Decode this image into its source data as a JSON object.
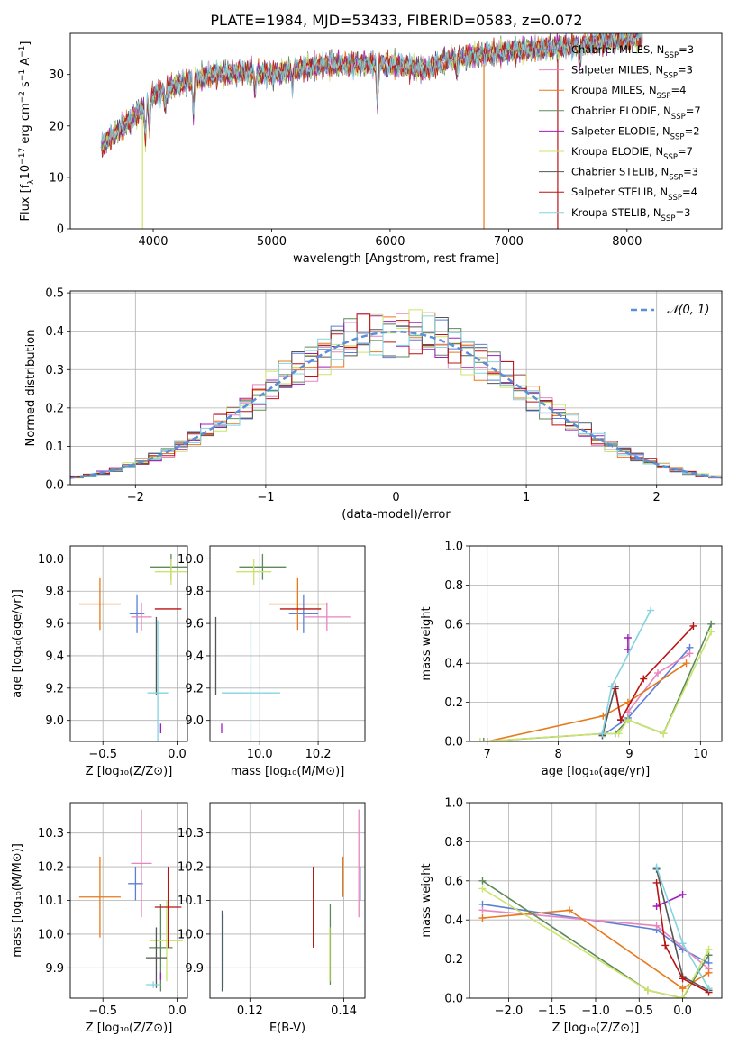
{
  "figure": {
    "title": "PLATE=1984, MJD=53433, FIBERID=0583, z=0.072"
  },
  "chart_data": [
    {
      "id": "spectrum",
      "type": "line",
      "xlabel": "wavelength [Angstrom, rest frame]",
      "ylabel_parts": [
        "Flux [f",
        "λ",
        "10",
        "−17",
        " erg cm",
        "−2",
        " s",
        "−1",
        " A",
        "−1",
        "]"
      ],
      "xlim": [
        3300,
        8800
      ],
      "ylim": [
        0,
        38
      ],
      "xticks": [
        4000,
        5000,
        6000,
        7000,
        8000
      ],
      "yticks": [
        0,
        10,
        20,
        30
      ],
      "grid": false,
      "legend_position": "upper-right",
      "continuum": [
        [
          3560,
          16
        ],
        [
          3700,
          19
        ],
        [
          3850,
          22
        ],
        [
          4000,
          26
        ],
        [
          4200,
          28
        ],
        [
          4500,
          30
        ],
        [
          4800,
          30.5
        ],
        [
          5000,
          30
        ],
        [
          5200,
          31
        ],
        [
          5500,
          32
        ],
        [
          6000,
          32
        ],
        [
          6300,
          31
        ],
        [
          6500,
          33
        ],
        [
          6800,
          34
        ],
        [
          7000,
          34.5
        ],
        [
          7500,
          35.5
        ],
        [
          8000,
          37
        ],
        [
          8130,
          37
        ]
      ],
      "series": [
        {
          "name_parts": [
            "Chabrier MILES, N",
            "SSP",
            "=3"
          ],
          "color": "#5b7fd6"
        },
        {
          "name_parts": [
            "Salpeter MILES, N",
            "SSP",
            "=3"
          ],
          "color": "#e884be"
        },
        {
          "name_parts": [
            "Kroupa MILES, N",
            "SSP",
            "=4"
          ],
          "color": "#e8791a"
        },
        {
          "name_parts": [
            "Chabrier ELODIE, N",
            "SSP",
            "=7"
          ],
          "color": "#5d8a5a"
        },
        {
          "name_parts": [
            "Salpeter ELODIE, N",
            "SSP",
            "=2"
          ],
          "color": "#a21cc2"
        },
        {
          "name_parts": [
            "Kroupa ELODIE, N",
            "SSP",
            "=7"
          ],
          "color": "#cbe46a"
        },
        {
          "name_parts": [
            "Chabrier STELIB, N",
            "SSP",
            "=3"
          ],
          "color": "#555555"
        },
        {
          "name_parts": [
            "Salpeter STELIB, N",
            "SSP",
            "=4"
          ],
          "color": "#b81414"
        },
        {
          "name_parts": [
            "Kroupa STELIB, N",
            "SSP",
            "=3"
          ],
          "color": "#83d4e0"
        }
      ]
    },
    {
      "id": "residuals",
      "type": "histogram",
      "xlabel": "(data-model)/error",
      "ylabel": "Normed distribution",
      "xlim": [
        -2.5,
        2.5
      ],
      "ylim": [
        0,
        0.505
      ],
      "xticks": [
        -2,
        -1,
        0,
        1,
        2
      ],
      "yticks": [
        0.0,
        0.1,
        0.2,
        0.3,
        0.4,
        0.5
      ],
      "grid": true,
      "legend": {
        "label": "𝒩(0, 1)",
        "position": "upper-right"
      },
      "bins": {
        "start": -2.5,
        "width": 0.1,
        "count": 50
      },
      "series": [
        {
          "color": "#5b7fd6",
          "phase": 0.0
        },
        {
          "color": "#e884be",
          "phase": 1.3
        },
        {
          "color": "#e8791a",
          "phase": 2.1
        },
        {
          "color": "#5d8a5a",
          "phase": 3.4
        },
        {
          "color": "#a21cc2",
          "phase": 4.2
        },
        {
          "color": "#cbe46a",
          "phase": 5.0
        },
        {
          "color": "#555555",
          "phase": 5.9
        },
        {
          "color": "#b81414",
          "phase": 0.7
        },
        {
          "color": "#83d4e0",
          "phase": 2.8
        }
      ]
    },
    {
      "id": "z-age",
      "type": "errorbar",
      "xlabel": "Z [log₁₀(Z/Z⊙)]",
      "ylabel": "age  [log₁₀(age/yr)]",
      "xlim": [
        -0.72,
        0.07
      ],
      "ylim": [
        8.87,
        10.08
      ],
      "xticks": [
        -0.5,
        0.0
      ],
      "yticks": [
        9.0,
        9.2,
        9.4,
        9.6,
        9.8,
        10.0
      ],
      "grid": true,
      "points": [
        {
          "color": "#5b7fd6",
          "x": -0.27,
          "xerr": 0.05,
          "y": 9.66,
          "yerr": 0.12
        },
        {
          "color": "#e884be",
          "x": -0.24,
          "xerr": 0.07,
          "y": 9.64,
          "yerr": 0.09
        },
        {
          "color": "#e8791a",
          "x": -0.52,
          "xerr": 0.14,
          "y": 9.72,
          "yerr": 0.16
        },
        {
          "color": "#5d8a5a",
          "x": -0.04,
          "xerr": 0.14,
          "y": 9.95,
          "yerr": 0.08
        },
        {
          "color": "#a21cc2",
          "x": -0.11,
          "xerr": 0.0,
          "y": 8.95,
          "yerr": 0.03
        },
        {
          "color": "#cbe46a",
          "x": -0.04,
          "xerr": 0.11,
          "y": 9.92,
          "yerr": 0.08
        },
        {
          "color": "#555555",
          "x": -0.14,
          "xerr": 0.0,
          "y": 9.4,
          "yerr": 0.24
        },
        {
          "color": "#b81414",
          "x": -0.06,
          "xerr": 0.09,
          "y": 9.69,
          "yerr": 0.0
        },
        {
          "color": "#83d4e0",
          "x": -0.13,
          "xerr": 0.07,
          "y": 9.17,
          "yerr": 0.45
        }
      ]
    },
    {
      "id": "mass-age",
      "type": "errorbar",
      "xlabel": "mass [log₁₀(M/M⊙)]",
      "ylabel": "",
      "xlim": [
        9.83,
        10.36
      ],
      "ylim": [
        8.87,
        10.08
      ],
      "xticks": [
        10.0,
        10.2
      ],
      "yticks": [
        9.0,
        9.2,
        9.4,
        9.6,
        9.8,
        10.0
      ],
      "grid": true,
      "points": [
        {
          "color": "#5b7fd6",
          "x": 10.15,
          "xerr": 0.05,
          "y": 9.66,
          "yerr": 0.12
        },
        {
          "color": "#e884be",
          "x": 10.23,
          "xerr": 0.08,
          "y": 9.64,
          "yerr": 0.09
        },
        {
          "color": "#e8791a",
          "x": 10.13,
          "xerr": 0.1,
          "y": 9.72,
          "yerr": 0.16
        },
        {
          "color": "#5d8a5a",
          "x": 10.01,
          "xerr": 0.08,
          "y": 9.95,
          "yerr": 0.08
        },
        {
          "color": "#a21cc2",
          "x": 9.87,
          "xerr": 0.0,
          "y": 8.95,
          "yerr": 0.03
        },
        {
          "color": "#cbe46a",
          "x": 9.98,
          "xerr": 0.06,
          "y": 9.92,
          "yerr": 0.08
        },
        {
          "color": "#555555",
          "x": 9.85,
          "xerr": 0.0,
          "y": 9.4,
          "yerr": 0.24
        },
        {
          "color": "#b81414",
          "x": 10.14,
          "xerr": 0.07,
          "y": 9.69,
          "yerr": 0.0
        },
        {
          "color": "#83d4e0",
          "x": 9.97,
          "xerr": 0.1,
          "y": 9.17,
          "yerr": 0.45
        }
      ]
    },
    {
      "id": "age-weight",
      "type": "line",
      "xlabel": "age  [log₁₀(age/yr)]",
      "ylabel": "mass weight",
      "xlim": [
        6.75,
        10.3
      ],
      "ylim": [
        0.0,
        1.0
      ],
      "xticks": [
        7,
        8,
        9,
        10
      ],
      "yticks": [
        0.0,
        0.2,
        0.4,
        0.6,
        0.8,
        1.0
      ],
      "grid": true,
      "series": [
        {
          "color": "#5b7fd6",
          "x": [
            8.62,
            8.98,
            9.85
          ],
          "y": [
            0.03,
            0.12,
            0.48
          ]
        },
        {
          "color": "#e884be",
          "x": [
            8.98,
            9.4,
            9.85
          ],
          "y": [
            0.15,
            0.35,
            0.45
          ]
        },
        {
          "color": "#e8791a",
          "x": [
            7.0,
            8.63,
            8.98,
            9.8
          ],
          "y": [
            0.0,
            0.13,
            0.2,
            0.4
          ]
        },
        {
          "color": "#5d8a5a",
          "x": [
            6.95,
            8.65,
            8.8,
            8.98,
            9.48,
            10.15
          ],
          "y": [
            0.0,
            0.04,
            0.04,
            0.11,
            0.04,
            0.6
          ]
        },
        {
          "color": "#a21cc2",
          "x": [
            8.98,
            8.98
          ],
          "y": [
            0.47,
            0.53
          ]
        },
        {
          "color": "#cbe46a",
          "x": [
            6.9,
            8.65,
            8.85,
            8.98,
            9.48,
            10.15
          ],
          "y": [
            0.0,
            0.04,
            0.04,
            0.11,
            0.04,
            0.56
          ]
        },
        {
          "color": "#555555",
          "x": [
            8.62,
            8.8,
            8.88
          ],
          "y": [
            0.03,
            0.28,
            0.11
          ]
        },
        {
          "color": "#b81414",
          "x": [
            8.8,
            8.88,
            9.2,
            9.9
          ],
          "y": [
            0.27,
            0.11,
            0.32,
            0.59
          ]
        },
        {
          "color": "#83d4e0",
          "x": [
            8.62,
            8.75,
            9.3
          ],
          "y": [
            0.04,
            0.28,
            0.67
          ]
        }
      ]
    },
    {
      "id": "z-mass",
      "type": "errorbar",
      "xlabel": "Z [log₁₀(Z/Z⊙)]",
      "ylabel": "mass [log₁₀(M/M⊙)]",
      "xlim": [
        -0.72,
        0.07
      ],
      "ylim": [
        9.81,
        10.39
      ],
      "xticks": [
        -0.5,
        0.0
      ],
      "yticks": [
        9.9,
        10.0,
        10.1,
        10.2,
        10.3
      ],
      "grid": true,
      "points": [
        {
          "color": "#5b7fd6",
          "x": -0.28,
          "xerr": 0.05,
          "y": 10.15,
          "yerr": 0.05
        },
        {
          "color": "#e884be",
          "x": -0.24,
          "xerr": 0.07,
          "y": 10.21,
          "yerr": 0.16
        },
        {
          "color": "#e8791a",
          "x": -0.52,
          "xerr": 0.14,
          "y": 10.11,
          "yerr": 0.12
        },
        {
          "color": "#5d8a5a",
          "x": -0.11,
          "xerr": 0.08,
          "y": 9.96,
          "yerr": 0.13
        },
        {
          "color": "#a21cc2",
          "x": -0.11,
          "xerr": 0.0,
          "y": 9.875,
          "yerr": 0.0
        },
        {
          "color": "#cbe46a",
          "x": -0.07,
          "xerr": 0.11,
          "y": 9.98,
          "yerr": 0.12
        },
        {
          "color": "#555555",
          "x": -0.14,
          "xerr": 0.07,
          "y": 9.93,
          "yerr": 0.09
        },
        {
          "color": "#b81414",
          "x": -0.06,
          "xerr": 0.09,
          "y": 10.08,
          "yerr": 0.12
        },
        {
          "color": "#83d4e0",
          "x": -0.16,
          "xerr": 0.05,
          "y": 9.85,
          "yerr": 0.01
        }
      ]
    },
    {
      "id": "ebv-mass",
      "type": "errorbar",
      "xlabel": "E(B-V)",
      "ylabel": "",
      "xlim": [
        0.1115,
        0.1445
      ],
      "ylim": [
        9.81,
        10.39
      ],
      "xticks": [
        0.12,
        0.14
      ],
      "yticks": [
        9.9,
        10.0,
        10.1,
        10.2,
        10.3
      ],
      "grid": true,
      "points": [
        {
          "color": "#5b7fd6",
          "x": 0.1435,
          "xerr": 0,
          "y": 10.15,
          "yerr": 0.05
        },
        {
          "color": "#e884be",
          "x": 0.1432,
          "xerr": 0,
          "y": 10.21,
          "yerr": 0.16
        },
        {
          "color": "#e8791a",
          "x": 0.1398,
          "xerr": 0,
          "y": 10.17,
          "yerr": 0.06
        },
        {
          "color": "#5d8a5a",
          "x": 0.1371,
          "xerr": 0,
          "y": 9.97,
          "yerr": 0.12
        },
        {
          "color": "#cbe46a",
          "x": 0.137,
          "xerr": 0,
          "y": 9.94,
          "yerr": 0.08
        },
        {
          "color": "#b81414",
          "x": 0.1335,
          "xerr": 0,
          "y": 10.08,
          "yerr": 0.12
        },
        {
          "color": "#555555",
          "x": 0.1141,
          "xerr": 0,
          "y": 9.95,
          "yerr": 0.12
        },
        {
          "color": "#83d4e0",
          "x": 0.1143,
          "xerr": 0,
          "y": 9.95,
          "yerr": 0.11
        }
      ]
    },
    {
      "id": "z-weight",
      "type": "line",
      "xlabel": "Z [log₁₀(Z/Z⊙)]",
      "ylabel": "mass weight",
      "xlim": [
        -2.45,
        0.45
      ],
      "ylim": [
        0.0,
        1.0
      ],
      "xticks": [
        -2.0,
        -1.5,
        -1.0,
        -0.5,
        0.0
      ],
      "yticks": [
        0.0,
        0.2,
        0.4,
        0.6,
        0.8,
        1.0
      ],
      "grid": true,
      "series": [
        {
          "color": "#5b7fd6",
          "x": [
            -2.3,
            -0.3,
            0.0,
            0.3
          ],
          "y": [
            0.48,
            0.35,
            0.25,
            0.18
          ]
        },
        {
          "color": "#e884be",
          "x": [
            -2.3,
            -0.3,
            0.3
          ],
          "y": [
            0.45,
            0.37,
            0.15
          ]
        },
        {
          "color": "#e8791a",
          "x": [
            -2.3,
            -1.3,
            0.0,
            0.3
          ],
          "y": [
            0.41,
            0.45,
            0.05,
            0.13
          ]
        },
        {
          "color": "#5d8a5a",
          "x": [
            -2.3,
            -0.4,
            0.0,
            0.3
          ],
          "y": [
            0.6,
            0.04,
            0.0,
            0.22
          ]
        },
        {
          "color": "#a21cc2",
          "x": [
            -0.3,
            0.0
          ],
          "y": [
            0.47,
            0.53
          ]
        },
        {
          "color": "#cbe46a",
          "x": [
            -2.3,
            -0.4,
            0.0,
            0.3
          ],
          "y": [
            0.56,
            0.04,
            0.0,
            0.25
          ]
        },
        {
          "color": "#555555",
          "x": [
            -0.3,
            0.0,
            0.3
          ],
          "y": [
            0.66,
            0.11,
            0.04
          ]
        },
        {
          "color": "#b81414",
          "x": [
            -0.3,
            -0.2,
            0.0,
            0.3
          ],
          "y": [
            0.59,
            0.27,
            0.1,
            0.03
          ]
        },
        {
          "color": "#83d4e0",
          "x": [
            -0.3,
            0.0,
            0.3
          ],
          "y": [
            0.67,
            0.28,
            0.05
          ]
        }
      ]
    }
  ]
}
